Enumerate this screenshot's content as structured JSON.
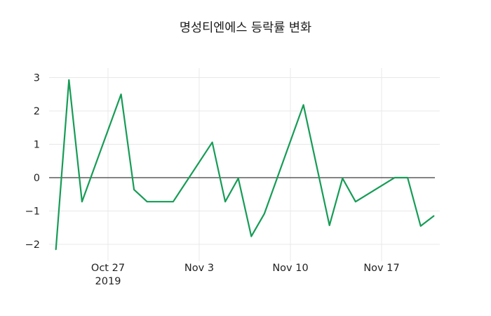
{
  "chart_data": {
    "type": "line",
    "title": "명성티엔에스 등락률 변화",
    "xlabel": "",
    "ylabel": "",
    "grid": true,
    "legend": "none",
    "ylim": [
      -2.35,
      3.35
    ],
    "y_ticks": [
      {
        "v": 3,
        "label": "3"
      },
      {
        "v": 2,
        "label": "2"
      },
      {
        "v": 1,
        "label": "1"
      },
      {
        "v": 0,
        "label": "0"
      },
      {
        "v": -1,
        "label": "−1"
      },
      {
        "v": -2,
        "label": "−2"
      }
    ],
    "x_ticks": [
      {
        "date": "2019-10-27",
        "label": "Oct 27",
        "year": "2019"
      },
      {
        "date": "2019-11-03",
        "label": "Nov 3"
      },
      {
        "date": "2019-11-10",
        "label": "Nov 10"
      },
      {
        "date": "2019-11-17",
        "label": "Nov 17"
      }
    ],
    "series": [
      {
        "name": "등락률",
        "points": [
          {
            "date": "2019-10-23",
            "value": -2.15
          },
          {
            "date": "2019-10-24",
            "value": 2.93
          },
          {
            "date": "2019-10-25",
            "value": -0.72
          },
          {
            "date": "2019-10-28",
            "value": 2.5
          },
          {
            "date": "2019-10-29",
            "value": -0.36
          },
          {
            "date": "2019-10-30",
            "value": -0.72
          },
          {
            "date": "2019-10-31",
            "value": -0.72
          },
          {
            "date": "2019-11-01",
            "value": -0.72
          },
          {
            "date": "2019-11-04",
            "value": 1.06
          },
          {
            "date": "2019-11-05",
            "value": -0.72
          },
          {
            "date": "2019-11-06",
            "value": -0.02
          },
          {
            "date": "2019-11-07",
            "value": -1.76
          },
          {
            "date": "2019-11-08",
            "value": -1.08
          },
          {
            "date": "2019-11-11",
            "value": 2.18
          },
          {
            "date": "2019-11-12",
            "value": 0.38
          },
          {
            "date": "2019-11-13",
            "value": -1.43
          },
          {
            "date": "2019-11-14",
            "value": -0.02
          },
          {
            "date": "2019-11-15",
            "value": -0.72
          },
          {
            "date": "2019-11-18",
            "value": 0.0
          },
          {
            "date": "2019-11-19",
            "value": 0.0
          },
          {
            "date": "2019-11-20",
            "value": -1.45
          },
          {
            "date": "2019-11-21",
            "value": -1.15
          }
        ]
      }
    ],
    "colors": {
      "line": "#169c56",
      "grid": "#e8e8e8",
      "zero_line": "#3b3b3b",
      "text": "#222222",
      "background": "#ffffff"
    }
  }
}
